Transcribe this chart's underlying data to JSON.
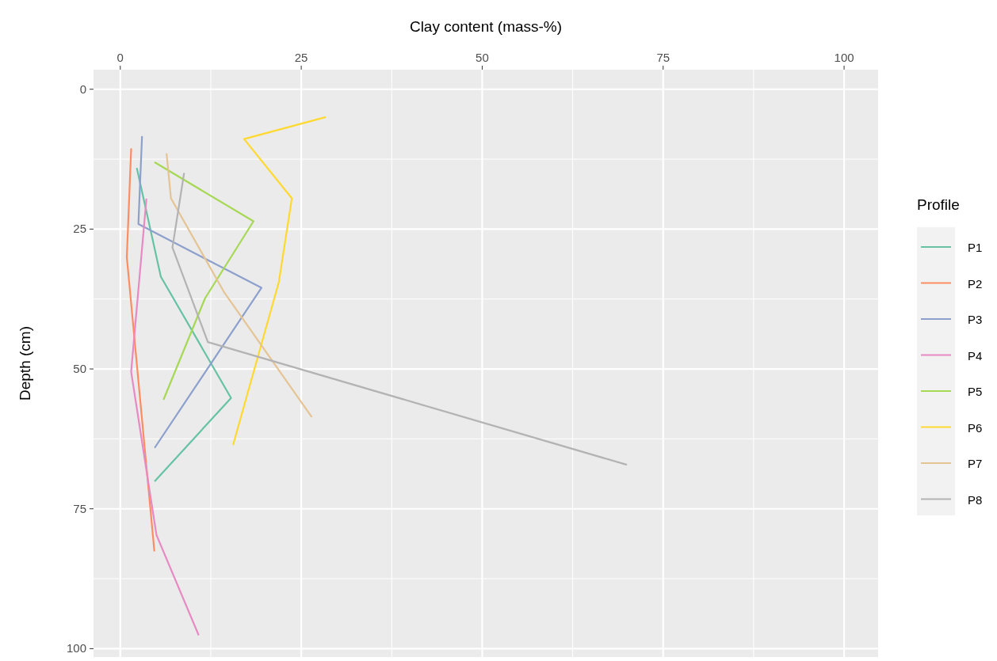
{
  "chart_data": {
    "type": "line",
    "xlabel": "Clay content (mass-%)",
    "ylabel": "Depth (cm)",
    "legend_title": "Profile",
    "xlim": [
      -3.7,
      104.7
    ],
    "ylim": [
      101.5,
      -3.5
    ],
    "xticks": [
      0,
      25,
      50,
      75,
      100
    ],
    "yticks": [
      0,
      25,
      50,
      75,
      100
    ],
    "grid": true,
    "legend": "right",
    "marker": "none",
    "line_style": "solid",
    "series": [
      {
        "name": "P1",
        "color": "#66c2a5",
        "x": [
          2.3,
          5.6,
          15.3,
          4.8
        ],
        "values": [
          14.2,
          33.5,
          55.2,
          70
        ]
      },
      {
        "name": "P2",
        "color": "#fc8d62",
        "x": [
          1.5,
          0.9,
          4.7
        ],
        "values": [
          10.7,
          30,
          82.5
        ]
      },
      {
        "name": "P3",
        "color": "#8da0cb",
        "x": [
          3,
          2.5,
          19.5,
          4.8
        ],
        "values": [
          8.5,
          24.1,
          35.5,
          64
        ]
      },
      {
        "name": "P4",
        "color": "#e78ac3",
        "x": [
          3.6,
          1.5,
          5,
          10.8
        ],
        "values": [
          19.7,
          50.5,
          79.7,
          97.5
        ]
      },
      {
        "name": "P5",
        "color": "#a6d854",
        "x": [
          4.8,
          18.4,
          11.7,
          6
        ],
        "values": [
          13.1,
          23.6,
          37.4,
          55.4
        ]
      },
      {
        "name": "P6",
        "color": "#ffd92f",
        "x": [
          28.3,
          17.1,
          23.7,
          21.9,
          15.6
        ],
        "values": [
          5,
          8.9,
          19.5,
          34.5,
          63.5
        ]
      },
      {
        "name": "P7",
        "color": "#e5c494",
        "x": [
          6.4,
          7,
          14.4,
          26.4
        ],
        "values": [
          11.6,
          19.5,
          36.4,
          58.5
        ]
      },
      {
        "name": "P8",
        "color": "#b3b3b3",
        "x": [
          8.8,
          7.2,
          12.1,
          69.9
        ],
        "values": [
          15.1,
          28.3,
          45.2,
          67.1
        ]
      }
    ]
  }
}
